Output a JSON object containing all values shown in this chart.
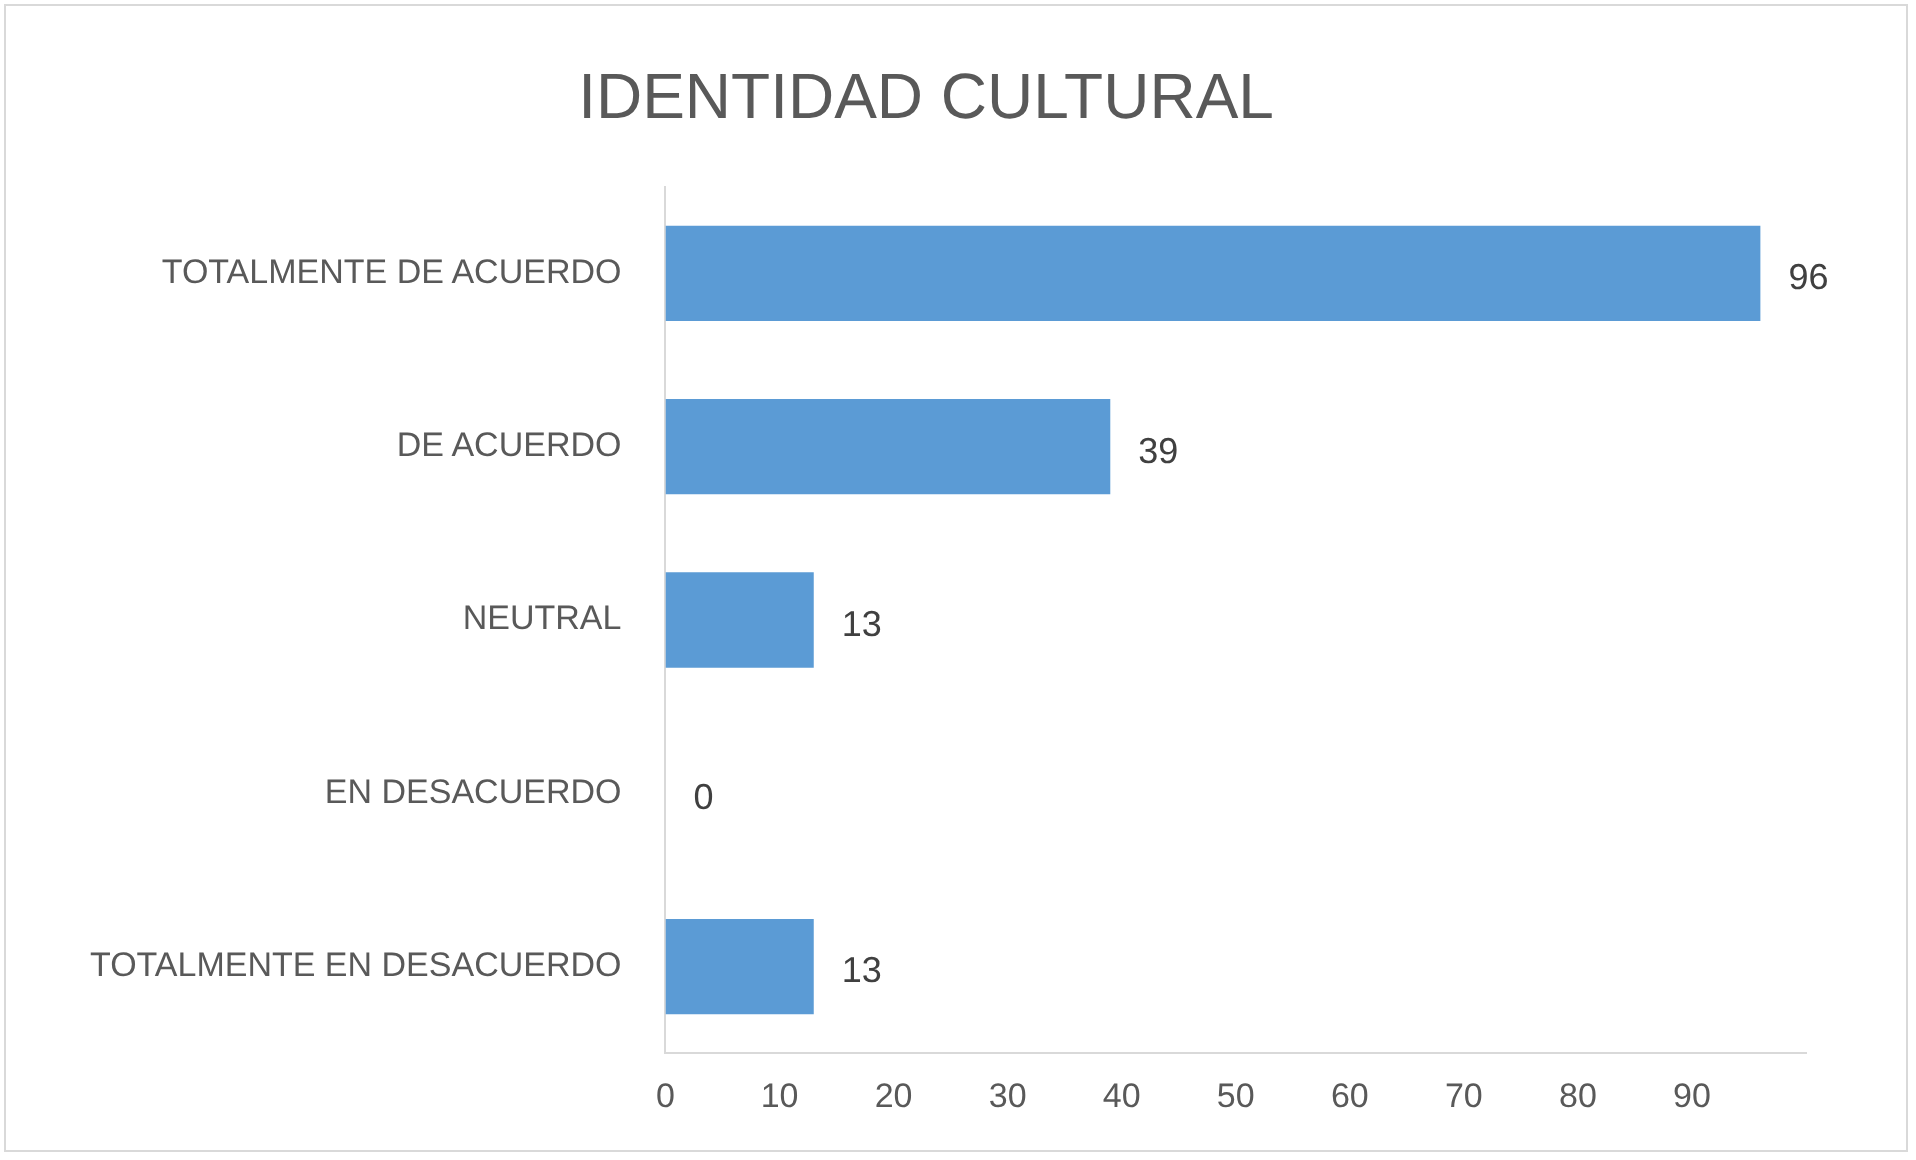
{
  "chart_data": {
    "type": "bar",
    "orientation": "horizontal",
    "title": "IDENTIDAD CULTURAL",
    "categories": [
      "TOTALMENTE DE ACUERDO",
      "DE ACUERDO",
      "NEUTRAL",
      "EN DESACUERDO",
      "TOTALMENTE EN DESACUERDO"
    ],
    "values": [
      96,
      39,
      13,
      0,
      13
    ],
    "data_labels": true,
    "color": "#5b9bd5",
    "xlim": [
      0,
      100
    ],
    "xticks": [
      0,
      10,
      20,
      30,
      40,
      50,
      60,
      70,
      80,
      90
    ],
    "grid": false,
    "legend": false
  }
}
